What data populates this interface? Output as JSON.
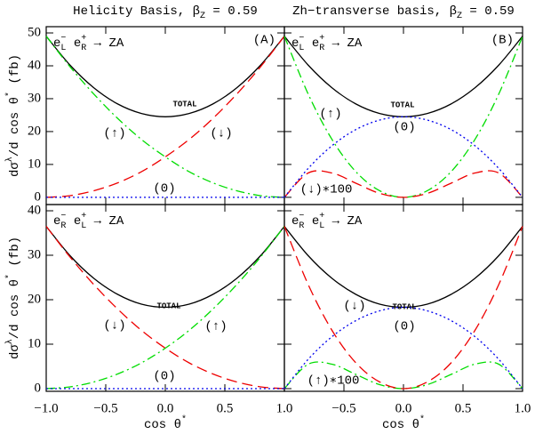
{
  "chart_data": [
    {
      "type": "line",
      "title": [
        "Helicity Basis, β",
        "Z",
        " = 0.59"
      ],
      "y_label": [
        "dσ",
        "λ",
        "/d cos θ",
        "*",
        " (fb)"
      ],
      "panel_label": "(A)",
      "process": [
        {
          "text": "e",
          "sup": "−",
          "sub": "L"
        },
        {
          "text": " e",
          "sup": "+",
          "sub": "R"
        },
        {
          "text": " → ZA"
        }
      ],
      "x": [
        -1,
        -0.8,
        -0.6,
        -0.4,
        -0.2,
        0,
        0.2,
        0.4,
        0.6,
        0.8,
        1
      ],
      "xlim": [
        -1,
        1
      ],
      "xticks": [
        -1,
        -0.5,
        0,
        0.5,
        1
      ],
      "ylim": [
        -2.2,
        51.9
      ],
      "yticks": [
        0,
        10,
        20,
        30,
        40,
        50
      ],
      "series": [
        {
          "name": "TOTAL",
          "color": "#000000",
          "values": [
            49,
            40.2,
            33.3,
            28.4,
            25.5,
            24.5,
            25.5,
            28.4,
            33.3,
            40.2,
            49
          ]
        },
        {
          "name": "(↑)",
          "color": "#00dd00",
          "values": [
            49,
            39.7,
            31.4,
            24.0,
            17.6,
            12.3,
            7.8,
            4.4,
            2.0,
            0.5,
            0
          ]
        },
        {
          "name": "(↓)",
          "color": "#ee0000",
          "values": [
            0,
            0.5,
            2.0,
            4.4,
            7.8,
            12.3,
            17.6,
            24.0,
            31.4,
            39.7,
            49
          ]
        },
        {
          "name": "(0)",
          "color": "#0000ee",
          "values": [
            0,
            0,
            0,
            0,
            0,
            0,
            0,
            0,
            0,
            0,
            0
          ]
        }
      ]
    },
    {
      "type": "line",
      "title": [
        "Zh−transverse basis, β",
        "Z",
        " = 0.59"
      ],
      "panel_label": "(B)",
      "process": [
        {
          "text": "e",
          "sup": "−",
          "sub": "L"
        },
        {
          "text": " e",
          "sup": "+",
          "sub": "R"
        },
        {
          "text": " → ZA"
        }
      ],
      "x": [
        -1,
        -0.8,
        -0.6,
        -0.4,
        -0.2,
        0,
        0.2,
        0.4,
        0.6,
        0.8,
        1
      ],
      "xlim": [
        -1,
        1
      ],
      "xticks": [
        -0.5,
        0,
        0.5,
        1
      ],
      "ylim": [
        -2.2,
        51.9
      ],
      "yticks": [
        0,
        10,
        20,
        30,
        40,
        50
      ],
      "series": [
        {
          "name": "TOTAL",
          "color": "#000000",
          "values": [
            49,
            40.2,
            33.3,
            28.4,
            25.5,
            24.5,
            25.5,
            28.4,
            33.3,
            40.2,
            49
          ]
        },
        {
          "name": "(↑)",
          "color": "#00dd00",
          "values": [
            49,
            31.4,
            17.6,
            7.8,
            2.0,
            0,
            2.0,
            7.8,
            17.6,
            31.4,
            49
          ]
        },
        {
          "name": "(↓)∗100",
          "color": "#ee0000",
          "values": [
            0,
            7.4,
            7.4,
            4.3,
            1.2,
            0,
            1.2,
            4.3,
            7.4,
            7.4,
            0
          ]
        },
        {
          "name": "(0)",
          "color": "#0000ee",
          "values": [
            0,
            8.8,
            15.7,
            20.6,
            23.5,
            24.5,
            23.5,
            20.6,
            15.7,
            8.8,
            0
          ]
        }
      ]
    },
    {
      "type": "line",
      "y_label": [
        "dσ",
        "λ",
        "/d cos θ",
        "*",
        " (fb)"
      ],
      "x_label": [
        "cos θ",
        "*"
      ],
      "process": [
        {
          "text": "e",
          "sup": "−",
          "sub": "R"
        },
        {
          "text": " e",
          "sup": "+",
          "sub": "L"
        },
        {
          "text": " → ZA"
        }
      ],
      "x": [
        -1,
        -0.8,
        -0.6,
        -0.4,
        -0.2,
        0,
        0.2,
        0.4,
        0.6,
        0.8,
        1
      ],
      "xlim": [
        -1,
        1
      ],
      "xticks": [
        {
          "value": -1,
          "label": "−1.0"
        },
        {
          "value": -0.5,
          "label": "−0.5"
        },
        {
          "value": 0,
          "label": "0.0"
        },
        0.5,
        {
          "value": 1,
          "label": "1.0"
        }
      ],
      "ylim": [
        -0.6,
        41.4
      ],
      "yticks": [
        0,
        10,
        20,
        30,
        40
      ],
      "series": [
        {
          "name": "TOTAL",
          "color": "#000000",
          "values": [
            36.5,
            29.9,
            24.8,
            21.2,
            19.0,
            18.3,
            19.0,
            21.2,
            24.8,
            29.9,
            36.5
          ]
        },
        {
          "name": "(↑)",
          "color": "#00dd00",
          "values": [
            0,
            0.4,
            1.5,
            3.3,
            5.8,
            9.1,
            13.1,
            17.9,
            23.4,
            29.6,
            36.5
          ]
        },
        {
          "name": "(↓)",
          "color": "#ee0000",
          "values": [
            36.5,
            29.6,
            23.4,
            17.9,
            13.1,
            9.1,
            5.8,
            3.3,
            1.5,
            0.4,
            0
          ]
        },
        {
          "name": "(0)",
          "color": "#0000ee",
          "values": [
            0,
            0,
            0,
            0,
            0,
            0,
            0,
            0,
            0,
            0,
            0
          ]
        }
      ]
    },
    {
      "type": "line",
      "x_label": [
        "cos θ",
        "*"
      ],
      "process": [
        {
          "text": "e",
          "sup": "−",
          "sub": "R"
        },
        {
          "text": " e",
          "sup": "+",
          "sub": "L"
        },
        {
          "text": " → ZA"
        }
      ],
      "x": [
        -1,
        -0.8,
        -0.6,
        -0.4,
        -0.2,
        0,
        0.2,
        0.4,
        0.6,
        0.8,
        1
      ],
      "xlim": [
        -1,
        1
      ],
      "xticks": [
        {
          "value": -0.5,
          "label": "−0.5"
        },
        {
          "value": 0,
          "label": "0.0"
        },
        0.5,
        {
          "value": 1,
          "label": "1.0"
        }
      ],
      "ylim": [
        -0.6,
        41.4
      ],
      "yticks": [
        0,
        10,
        20,
        30,
        40
      ],
      "series": [
        {
          "name": "TOTAL",
          "color": "#000000",
          "values": [
            36.5,
            29.9,
            24.8,
            21.2,
            19.0,
            18.3,
            19.0,
            21.2,
            24.8,
            29.9,
            36.5
          ]
        },
        {
          "name": "(↑)∗100",
          "color": "#00dd00",
          "values": [
            0,
            5.5,
            5.5,
            3.2,
            0.9,
            0,
            0.9,
            3.2,
            5.5,
            5.5,
            0
          ]
        },
        {
          "name": "(↓)",
          "color": "#ee0000",
          "values": [
            36.5,
            23.4,
            13.1,
            5.8,
            1.5,
            0,
            1.5,
            5.8,
            13.1,
            23.4,
            36.5
          ]
        },
        {
          "name": "(0)",
          "color": "#0000ee",
          "values": [
            0,
            6.6,
            11.7,
            15.3,
            17.5,
            18.3,
            17.5,
            15.3,
            11.7,
            6.6,
            0
          ]
        }
      ]
    }
  ]
}
